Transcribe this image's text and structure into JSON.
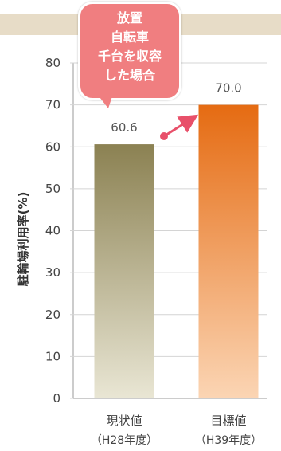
{
  "chart_data": {
    "type": "bar",
    "categories": [
      "現状値",
      "目標値"
    ],
    "category_sublabels": [
      "（H28年度）",
      "（H39年度）"
    ],
    "values": [
      60.6,
      70.0
    ],
    "data_labels": [
      "60.6",
      "70.0"
    ],
    "ylabel": "駐輪場利用率(%)",
    "ylim": [
      0,
      80
    ],
    "yticks": [
      "0",
      "10",
      "20",
      "30",
      "40",
      "50",
      "60",
      "70",
      "80"
    ],
    "grid": true,
    "bar_colors": [
      {
        "top": "#8b8152",
        "bottom": "#e9e6d4"
      },
      {
        "top": "#e56b12",
        "bottom": "#fbd5b4"
      }
    ]
  },
  "callout": {
    "lines": [
      "放置",
      "自転車",
      "千台を収容",
      "した場合"
    ],
    "color": "#f07e80"
  },
  "arrow_color": "#e8506a"
}
